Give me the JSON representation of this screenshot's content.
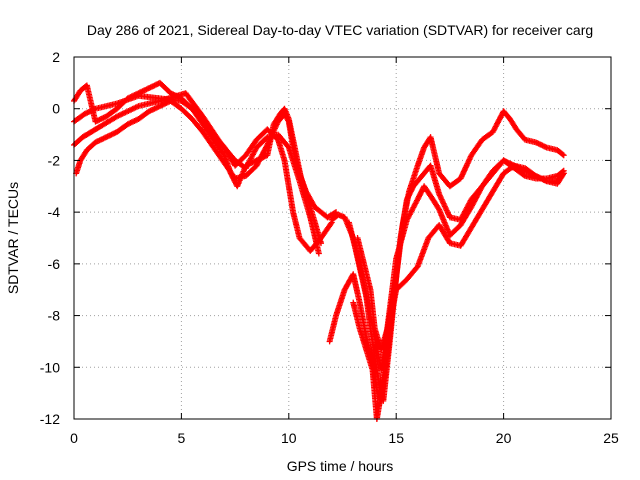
{
  "chart_data": {
    "type": "scatter",
    "title": "Day 286 of 2021, Sidereal Day-to-day VTEC variation (SDTVAR) for receiver carg",
    "xlabel": "GPS time / hours",
    "ylabel": "SDTVAR / TECUs",
    "xlim": [
      0,
      25
    ],
    "ylim": [
      -12,
      2
    ],
    "xticks": [
      0,
      5,
      10,
      15,
      20,
      25
    ],
    "yticks": [
      2,
      0,
      -2,
      -4,
      -6,
      -8,
      -10,
      -12
    ],
    "grid": true,
    "legend": "none",
    "marker": "plus",
    "color": "#ff0000",
    "series": [
      {
        "x": [
          0.0,
          0.3,
          0.6,
          1.0,
          1.5,
          2.0,
          2.5,
          3.0,
          3.5,
          4.0,
          4.5,
          5.0,
          5.5,
          6.0,
          6.5,
          7.0,
          7.3,
          7.6,
          8.0,
          8.5,
          9.0,
          9.3,
          9.6,
          9.8,
          10.0,
          10.3,
          10.6,
          11.0,
          11.5
        ],
        "y": [
          0.3,
          0.7,
          0.9,
          -0.5,
          -0.3,
          0.0,
          0.4,
          0.6,
          0.8,
          1.0,
          0.6,
          0.4,
          0.0,
          -0.6,
          -1.2,
          -1.8,
          -2.5,
          -3.0,
          -2.2,
          -2.0,
          -1.8,
          -0.6,
          -0.2,
          0.0,
          -0.4,
          -1.6,
          -2.8,
          -3.8,
          -5.2
        ]
      },
      {
        "x": [
          0.0,
          0.5,
          1.0,
          2.0,
          3.0,
          4.0,
          5.0,
          5.5,
          6.0,
          6.5,
          7.0,
          7.5,
          8.0,
          8.5,
          9.0,
          9.5,
          9.8,
          10.0,
          10.2,
          10.5,
          11.0,
          11.5,
          12.0
        ],
        "y": [
          -0.5,
          -0.2,
          0.0,
          0.2,
          0.5,
          0.4,
          0.3,
          0.0,
          -0.5,
          -1.0,
          -1.5,
          -2.2,
          -1.8,
          -1.2,
          -0.8,
          -1.2,
          -2.0,
          -3.0,
          -4.0,
          -5.0,
          -5.5,
          -5.0,
          -4.4
        ]
      },
      {
        "x": [
          0.0,
          0.4,
          0.8,
          1.2,
          2.0,
          3.0,
          4.0,
          4.8,
          5.2,
          6.0,
          6.8,
          7.5,
          8.0,
          8.5,
          9.0,
          9.5,
          10.0,
          10.5,
          11.0,
          11.4
        ],
        "y": [
          -1.4,
          -1.1,
          -0.9,
          -0.7,
          -0.3,
          0.1,
          0.3,
          0.5,
          0.6,
          -0.3,
          -1.3,
          -2.0,
          -2.3,
          -1.5,
          -1.1,
          -1.0,
          -1.5,
          -2.8,
          -4.2,
          -5.6
        ]
      },
      {
        "x": [
          0.1,
          0.3,
          0.6,
          1.0,
          1.5,
          2.0,
          2.5,
          3.0,
          3.5,
          4.0,
          4.5,
          5.0,
          5.5,
          6.0,
          6.5,
          7.0,
          7.5,
          8.0,
          8.5,
          9.0,
          9.5,
          9.8,
          10.0,
          10.2,
          10.5,
          10.8,
          11.2,
          11.8,
          12.2
        ],
        "y": [
          -2.5,
          -2.0,
          -1.6,
          -1.3,
          -1.1,
          -0.9,
          -0.6,
          -0.4,
          -0.1,
          0.1,
          0.3,
          0.0,
          -0.4,
          -0.9,
          -1.5,
          -2.1,
          -2.7,
          -2.6,
          -2.2,
          -1.4,
          -0.5,
          -0.2,
          -0.5,
          -1.5,
          -2.5,
          -3.2,
          -3.8,
          -4.2,
          -4.0
        ]
      },
      {
        "x": [
          12.0,
          12.3,
          12.6,
          13.0,
          13.3,
          13.6,
          13.8,
          14.0,
          14.2,
          14.4,
          14.7,
          15.0,
          15.3,
          15.6,
          16.0,
          16.3,
          16.6,
          17.0,
          17.5,
          18.0,
          18.5,
          19.0,
          19.5,
          20.0,
          20.3,
          20.6,
          21.0,
          21.5,
          22.0,
          22.5,
          22.8
        ],
        "y": [
          -4.3,
          -4.1,
          -4.2,
          -5.0,
          -6.0,
          -7.2,
          -8.5,
          -9.6,
          -10.6,
          -11.3,
          -9.0,
          -6.5,
          -4.5,
          -3.2,
          -2.2,
          -1.5,
          -1.1,
          -2.5,
          -3.0,
          -2.7,
          -1.8,
          -1.2,
          -0.9,
          -0.1,
          -0.4,
          -0.8,
          -1.2,
          -1.3,
          -1.5,
          -1.6,
          -1.8
        ]
      },
      {
        "x": [
          11.9,
          12.2,
          12.6,
          13.0,
          13.3,
          13.6,
          13.9,
          14.1,
          14.3,
          14.5,
          14.8,
          15.2,
          15.5,
          15.8,
          16.2,
          16.6,
          17.0,
          17.5,
          18.0,
          18.5,
          19.0,
          19.5,
          20.0,
          20.5,
          21.0,
          21.5,
          22.0,
          22.5,
          22.8
        ],
        "y": [
          -9.0,
          -8.0,
          -7.0,
          -6.4,
          -7.5,
          -8.8,
          -9.8,
          -10.9,
          -11.3,
          -10.2,
          -8.0,
          -5.0,
          -3.5,
          -3.0,
          -2.6,
          -2.2,
          -3.3,
          -4.2,
          -4.3,
          -3.5,
          -3.0,
          -2.4,
          -2.0,
          -2.2,
          -2.4,
          -2.6,
          -2.8,
          -2.9,
          -2.5
        ]
      },
      {
        "x": [
          12.8,
          13.1,
          13.4,
          13.7,
          14.0,
          14.3,
          14.6,
          15.0,
          15.5,
          16.0,
          16.3,
          16.7,
          17.0,
          17.5,
          18.0,
          18.5,
          19.0,
          19.5,
          20.0,
          20.5,
          21.0,
          21.5,
          22.0,
          22.5,
          22.8
        ],
        "y": [
          -4.4,
          -5.4,
          -6.5,
          -7.6,
          -8.8,
          -10.1,
          -8.4,
          -5.8,
          -4.3,
          -3.5,
          -3.0,
          -3.5,
          -3.9,
          -4.9,
          -4.5,
          -3.8,
          -3.0,
          -2.5,
          -2.0,
          -2.3,
          -2.6,
          -2.7,
          -2.7,
          -2.6,
          -2.4
        ]
      },
      {
        "x": [
          13.0,
          13.3,
          13.6,
          13.9,
          14.1,
          14.3,
          14.6,
          15.0,
          15.5,
          16.0,
          16.5,
          17.0,
          17.5,
          18.0,
          18.5,
          19.0,
          19.5,
          20.0,
          20.5,
          21.0,
          21.5,
          22.0,
          22.5,
          22.8
        ],
        "y": [
          -7.5,
          -8.5,
          -9.3,
          -10.1,
          -12.0,
          -11.0,
          -8.8,
          -7.0,
          -6.6,
          -6.1,
          -5.0,
          -4.5,
          -5.2,
          -5.3,
          -4.6,
          -3.9,
          -3.2,
          -2.5,
          -2.2,
          -2.3,
          -2.6,
          -2.8,
          -2.8,
          -2.5
        ]
      },
      {
        "x": [
          13.2,
          13.5,
          13.8,
          14.0,
          14.3,
          14.6,
          15.0
        ],
        "y": [
          -5.0,
          -6.0,
          -7.0,
          -8.5,
          -9.3,
          -8.5,
          -6.5
        ]
      }
    ]
  }
}
